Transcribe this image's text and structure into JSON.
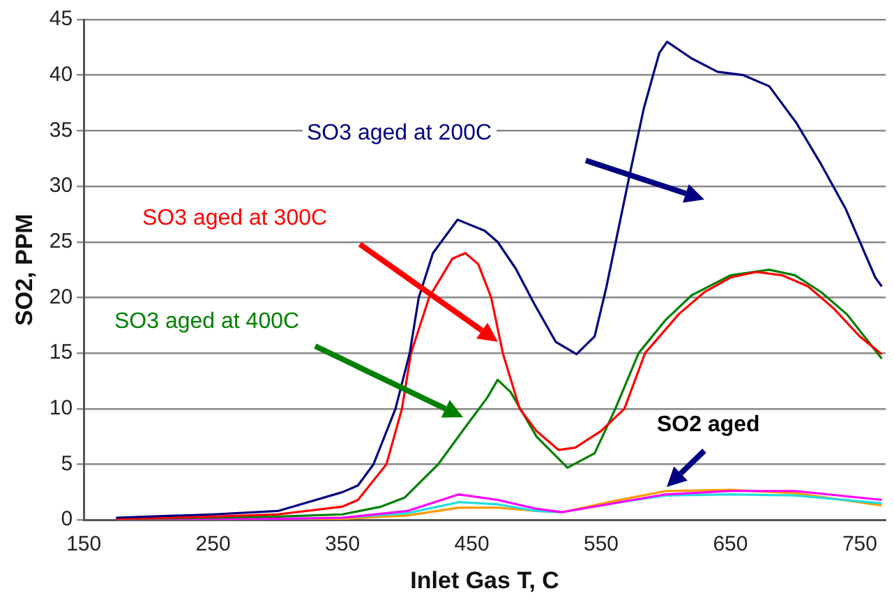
{
  "chart_data": {
    "type": "line",
    "xlabel": "Inlet Gas T, C",
    "ylabel": "SO2, PPM",
    "xlim": [
      150,
      770
    ],
    "xticks": [
      150,
      250,
      350,
      450,
      550,
      650,
      750
    ],
    "ylim": [
      0,
      45
    ],
    "yticks": [
      0,
      5,
      10,
      15,
      20,
      25,
      30,
      35,
      40,
      45
    ],
    "grid": "y",
    "legend": false,
    "marker": "none",
    "annotations": [
      "SO2 aged"
    ],
    "series": [
      {
        "name": "SO3 aged at 200C",
        "color": "#000080",
        "x": [
          175,
          250,
          300,
          350,
          362,
          374,
          391,
          402,
          409,
          420,
          439,
          460,
          470,
          484,
          498,
          515,
          531,
          545,
          554,
          572,
          583,
          595,
          601,
          620,
          640,
          660,
          680,
          701,
          720,
          739,
          762,
          767
        ],
        "values": [
          0.2,
          0.5,
          0.8,
          2.5,
          3.1,
          5,
          10,
          15,
          20,
          24,
          27,
          26,
          25,
          22.6,
          19.5,
          16,
          14.9,
          16.5,
          20.9,
          31,
          37,
          42,
          43,
          41.5,
          40.3,
          40,
          39,
          35.7,
          32,
          28,
          21.8,
          21
        ]
      },
      {
        "name": "SO3 aged at 300C",
        "color": "#ff0000",
        "x": [
          175,
          250,
          300,
          350,
          362,
          384,
          396,
          403,
          417,
          435,
          445,
          455,
          465,
          474,
          487,
          500,
          517,
          530,
          550,
          568,
          584,
          610,
          630,
          650,
          670,
          690,
          710,
          730,
          750,
          767
        ],
        "values": [
          0.1,
          0.3,
          0.5,
          1.2,
          1.8,
          5,
          10,
          15,
          20,
          23.5,
          24,
          23,
          20,
          15,
          10,
          8,
          6.3,
          6.5,
          8,
          10,
          15,
          18.5,
          20.5,
          21.8,
          22.3,
          22,
          21,
          19,
          16.5,
          14.9
        ]
      },
      {
        "name": "SO3 aged at 400C",
        "color": "#008000",
        "x": [
          175,
          250,
          300,
          350,
          380,
          398,
          424,
          446,
          462,
          470,
          480,
          500,
          524,
          545,
          561,
          579,
          600,
          620,
          650,
          680,
          700,
          720,
          740,
          767
        ],
        "values": [
          0.1,
          0.2,
          0.3,
          0.5,
          1.2,
          2,
          5,
          8.5,
          11,
          12.6,
          11.5,
          7.5,
          4.7,
          6,
          10,
          15,
          18,
          20.2,
          22,
          22.5,
          22,
          20.5,
          18.5,
          14.5
        ]
      },
      {
        "color": "#ff00ff",
        "x": [
          175,
          300,
          350,
          400,
          440,
          470,
          500,
          520,
          560,
          600,
          650,
          700,
          767
        ],
        "values": [
          0,
          0.1,
          0.2,
          0.8,
          2.3,
          1.8,
          1,
          0.7,
          1.5,
          2.3,
          2.6,
          2.6,
          1.8
        ]
      },
      {
        "color": "#22dddd",
        "x": [
          175,
          300,
          350,
          400,
          440,
          470,
          500,
          520,
          560,
          600,
          650,
          700,
          767
        ],
        "values": [
          0,
          0.1,
          0.2,
          0.6,
          1.6,
          1.4,
          0.8,
          0.7,
          1.5,
          2.2,
          2.3,
          2.2,
          1.5
        ]
      },
      {
        "color": "#ff9900",
        "x": [
          175,
          300,
          350,
          400,
          440,
          470,
          500,
          520,
          560,
          600,
          650,
          700,
          767
        ],
        "values": [
          0,
          0.1,
          0.1,
          0.4,
          1.1,
          1.1,
          0.8,
          0.7,
          1.7,
          2.6,
          2.7,
          2.4,
          1.3
        ]
      }
    ]
  }
}
